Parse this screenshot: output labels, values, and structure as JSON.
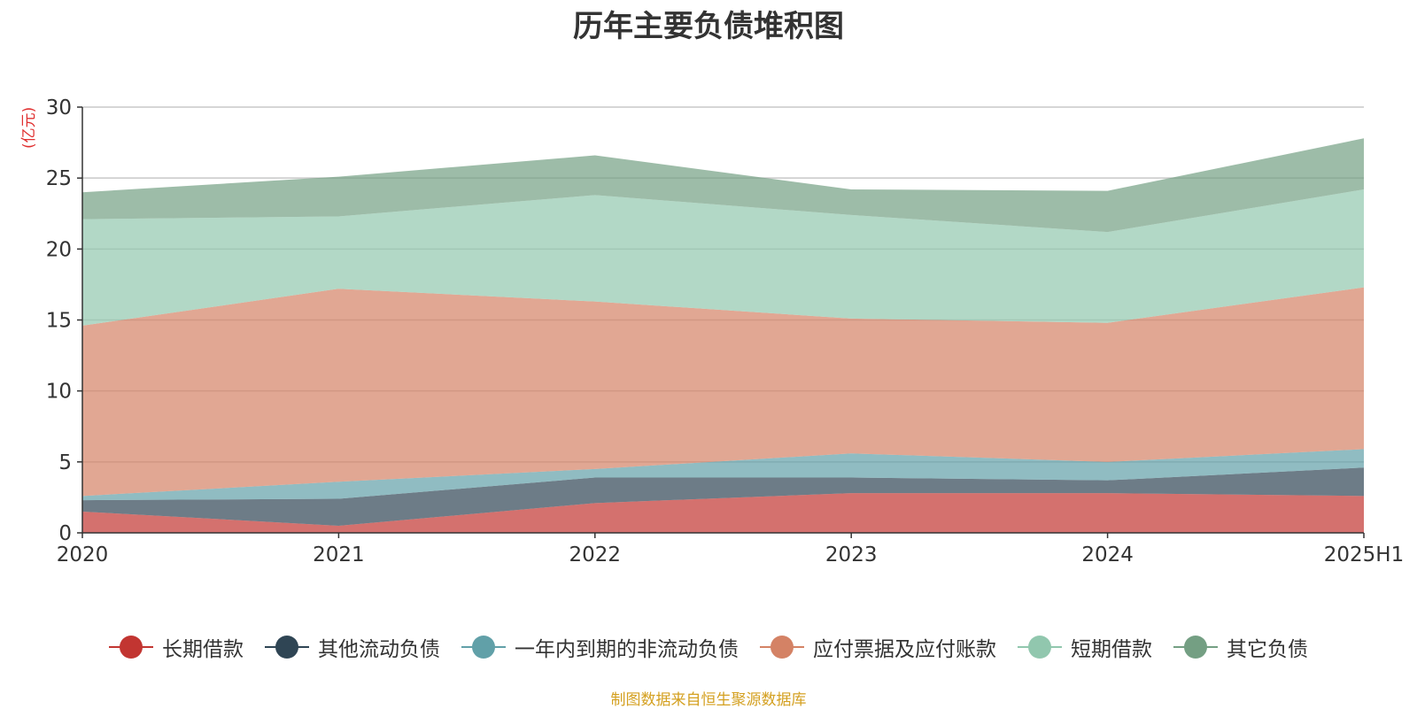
{
  "chart_data": {
    "type": "area",
    "title": "历年主要负债堆积图",
    "unit_label": "亿元",
    "x": [
      "2020",
      "2021",
      "2022",
      "2023",
      "2024",
      "2025H1"
    ],
    "ylim": [
      0,
      30
    ],
    "yticks": [
      0,
      5,
      10,
      15,
      20,
      25,
      30
    ],
    "stacked": true,
    "grid": true,
    "legend_position": "bottom",
    "series": [
      {
        "name": "长期借款",
        "color": "#c23531",
        "values": [
          1.5,
          0.5,
          2.1,
          2.8,
          2.8,
          2.6
        ]
      },
      {
        "name": "其他流动负债",
        "color": "#2f4554",
        "values": [
          0.8,
          1.9,
          1.8,
          1.1,
          0.9,
          2.0
        ]
      },
      {
        "name": "一年内到期的非流动负债",
        "color": "#61a0a8",
        "values": [
          0.3,
          1.2,
          0.6,
          1.7,
          1.3,
          1.3
        ]
      },
      {
        "name": "应付票据及应付账款",
        "color": "#d48265",
        "values": [
          12.0,
          13.6,
          11.8,
          9.5,
          9.8,
          11.4
        ]
      },
      {
        "name": "短期借款",
        "color": "#91c7ae",
        "values": [
          7.5,
          5.1,
          7.5,
          7.3,
          6.4,
          6.9
        ]
      },
      {
        "name": "其它负债",
        "color": "#749f83",
        "values": [
          1.9,
          2.8,
          2.8,
          1.8,
          2.9,
          3.6
        ]
      }
    ]
  },
  "source_text": "制图数据来自恒生聚源数据库"
}
